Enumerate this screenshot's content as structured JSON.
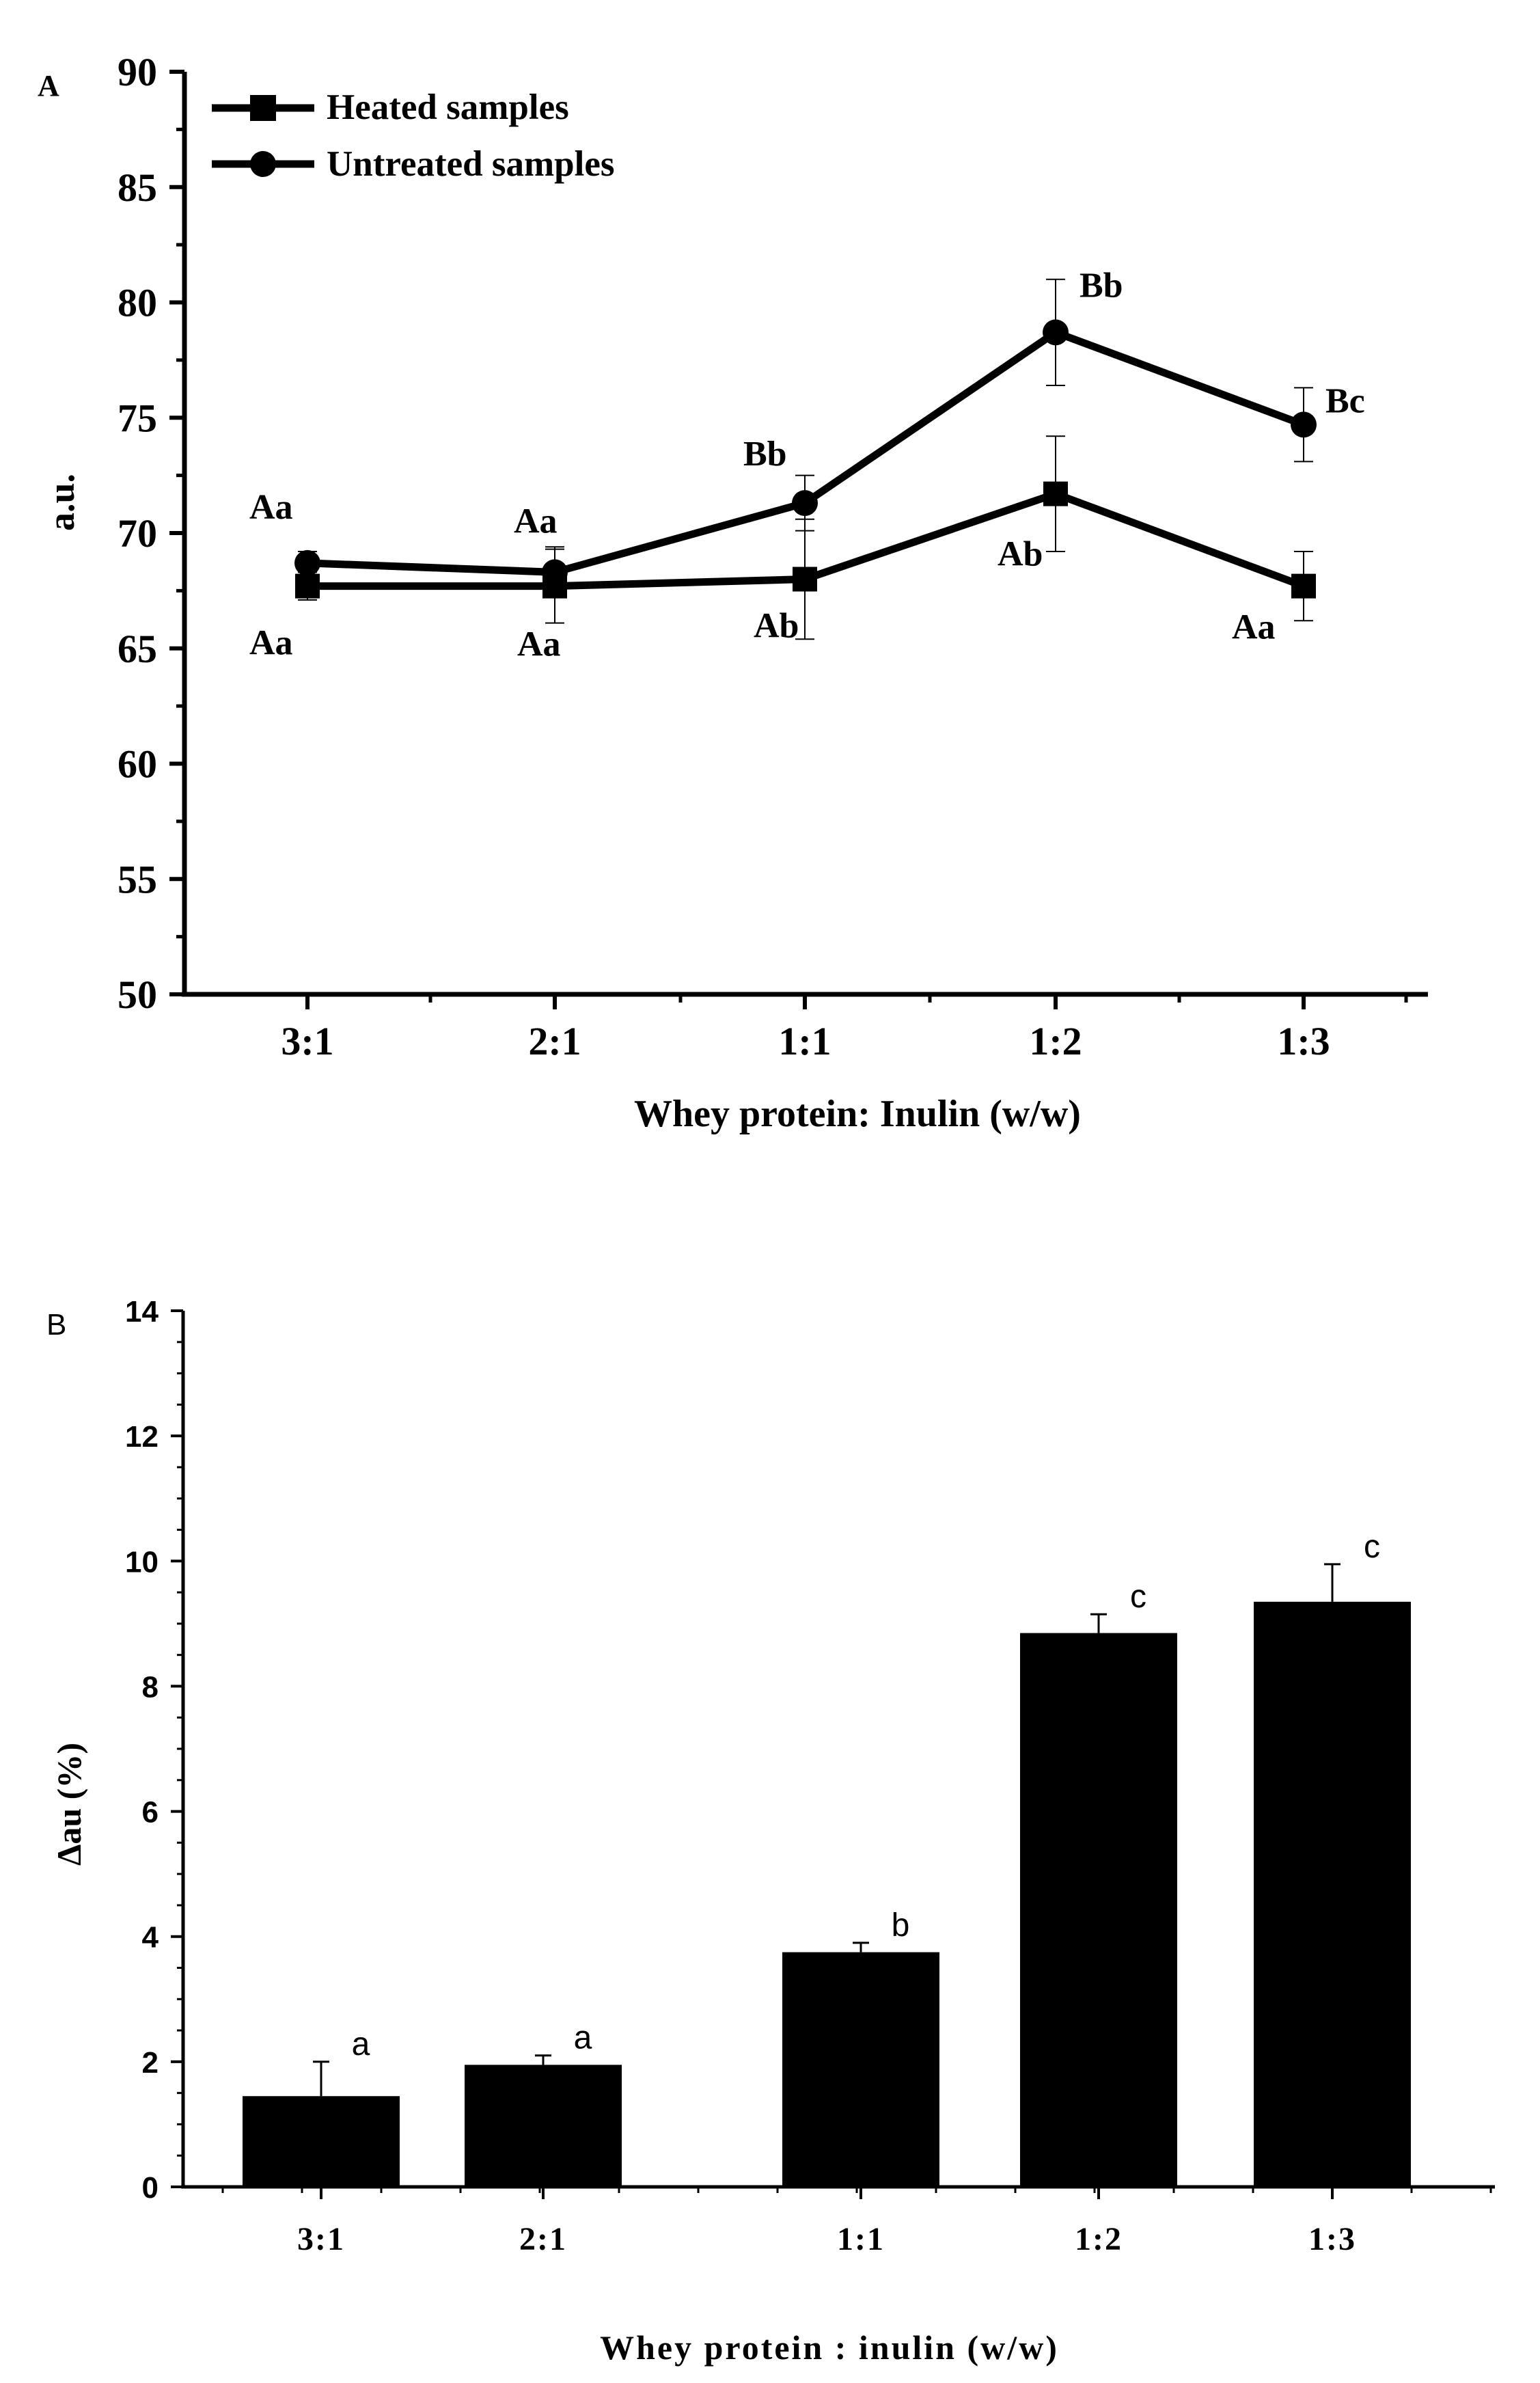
{
  "chart_data": [
    {
      "panel_label": "A",
      "type": "line",
      "title": "",
      "xlabel": "Whey protein: Inulin (w/w)",
      "ylabel": "a.u.",
      "categories": [
        "3:1",
        "2:1",
        "1:1",
        "1:2",
        "1:3"
      ],
      "ylim": [
        50,
        90
      ],
      "yticks": [
        "50",
        "55",
        "60",
        "65",
        "70",
        "75",
        "80",
        "85",
        "90"
      ],
      "grid": false,
      "legend_position": "top-left",
      "series": [
        {
          "name": "Heated samples",
          "marker": "square",
          "values": [
            67.7,
            67.7,
            68.0,
            71.7,
            67.7
          ],
          "errors": [
            0.6,
            1.6,
            2.6,
            2.5,
            1.5
          ],
          "annotations": [
            "Aa",
            "Aa",
            "Ab",
            "Ab",
            "Aa"
          ]
        },
        {
          "name": "Untreated samples",
          "marker": "circle",
          "values": [
            68.7,
            68.3,
            71.3,
            78.7,
            74.7
          ],
          "errors": [
            0.5,
            1.1,
            1.2,
            2.3,
            1.6
          ],
          "annotations": [
            "Aa",
            "Aa",
            "Bb",
            "Bb",
            "Bc"
          ]
        }
      ]
    },
    {
      "panel_label": "B",
      "type": "bar",
      "title": "",
      "xlabel": "Whey protein : inulin (w/w)",
      "ylabel": "Δau (%)",
      "categories": [
        "3:1",
        "2:1",
        "1:1",
        "1:2",
        "1:3"
      ],
      "ylim": [
        0,
        14
      ],
      "yticks": [
        "0",
        "2",
        "4",
        "6",
        "8",
        "10",
        "12",
        "14"
      ],
      "grid": false,
      "values": [
        1.45,
        1.95,
        3.75,
        8.85,
        9.35
      ],
      "errors": [
        0.55,
        0.15,
        0.15,
        0.3,
        0.6
      ],
      "annotations": [
        "a",
        "a",
        "b",
        "c",
        "c"
      ],
      "bar_color": "#000000"
    }
  ]
}
